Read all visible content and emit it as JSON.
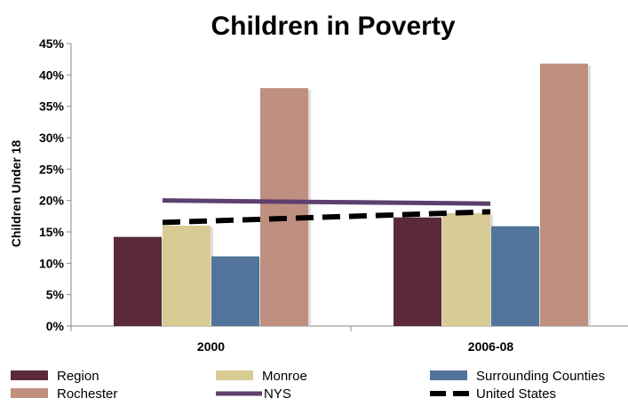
{
  "chart_data": {
    "type": "bar",
    "title": "Children in Poverty",
    "ylabel": "Children Under 18",
    "xlabel": "",
    "categories": [
      "2000",
      "2006-08"
    ],
    "ylim": [
      0,
      45
    ],
    "yticks": [
      "0%",
      "5%",
      "10%",
      "15%",
      "20%",
      "25%",
      "30%",
      "35%",
      "40%",
      "45%"
    ],
    "ytick_values": [
      0,
      5,
      10,
      15,
      20,
      25,
      30,
      35,
      40,
      45
    ],
    "series": [
      {
        "name": "Region",
        "kind": "bar",
        "color": "#5a2a3c",
        "values": [
          14.2,
          17.3
        ]
      },
      {
        "name": "Monroe",
        "kind": "bar",
        "color": "#d8cb94",
        "values": [
          16.0,
          18.0
        ]
      },
      {
        "name": "Surrounding Counties",
        "kind": "bar",
        "color": "#52749a",
        "values": [
          11.1,
          15.9
        ]
      },
      {
        "name": "Rochester",
        "kind": "bar",
        "color": "#bf8f80",
        "values": [
          37.9,
          41.8
        ]
      },
      {
        "name": "NYS",
        "kind": "line",
        "color": "#5c406e",
        "values": [
          20.0,
          19.5
        ]
      },
      {
        "name": "United States",
        "kind": "dashed-line",
        "color": "#000000",
        "values": [
          16.5,
          18.2
        ]
      }
    ],
    "legend_position": "bottom",
    "grid": false
  }
}
